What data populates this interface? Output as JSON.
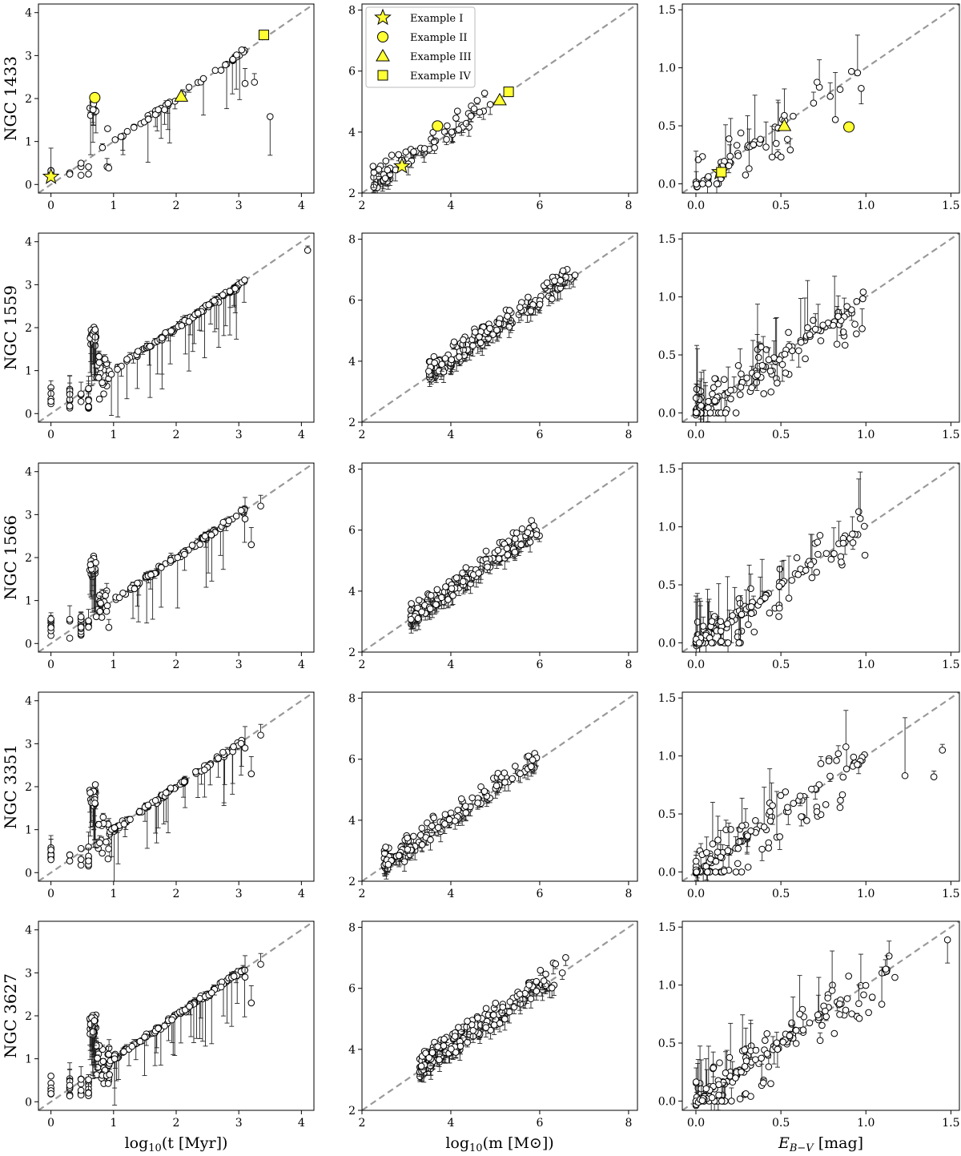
{
  "figure": {
    "x_labels": [
      "log10(t [Myr])",
      "log10(m [M⊙])",
      "E B−V [mag]"
    ],
    "legend": [
      {
        "label": "Example I",
        "marker": "star"
      },
      {
        "label": "Example II",
        "marker": "circle"
      },
      {
        "label": "Example III",
        "marker": "triangle"
      },
      {
        "label": "Example IV",
        "marker": "square"
      }
    ],
    "colors": {
      "highlight": "#ffff33",
      "point_face": "#ffffff",
      "point_edge": "#000000",
      "diagonal": "#999999"
    }
  },
  "chart_data": [
    {
      "type": "scatter",
      "galaxy": "NGC 1433",
      "columns": [
        {
          "quantity": "age",
          "lim": [
            -0.2,
            4.2
          ],
          "ticks": [
            0,
            1,
            2,
            3,
            4
          ],
          "tick_labels": [
            "0",
            "1",
            "2",
            "3",
            "4"
          ]
        },
        {
          "quantity": "mass",
          "lim": [
            2,
            8.2
          ],
          "ticks": [
            2,
            4,
            6,
            8
          ],
          "tick_labels": [
            "2",
            "4",
            "6",
            "8"
          ]
        },
        {
          "quantity": "ebv",
          "lim": [
            -0.08,
            1.55
          ],
          "ticks": [
            0.0,
            0.5,
            1.0,
            1.5
          ],
          "tick_labels": [
            "0.0",
            "0.5",
            "1.0",
            "1.5"
          ]
        }
      ],
      "examples": {
        "age": [
          {
            "label": "Example I",
            "x": 0.0,
            "y": 0.18
          },
          {
            "label": "Example II",
            "x": 0.7,
            "y": 2.02
          },
          {
            "label": "Example III",
            "x": 2.08,
            "y": 2.05
          },
          {
            "label": "Example IV",
            "x": 3.4,
            "y": 3.48
          }
        ],
        "mass": [
          {
            "label": "Example I",
            "x": 2.9,
            "y": 2.88
          },
          {
            "label": "Example II",
            "x": 3.7,
            "y": 4.2
          },
          {
            "label": "Example III",
            "x": 5.1,
            "y": 5.05
          },
          {
            "label": "Example IV",
            "x": 5.3,
            "y": 5.32
          }
        ],
        "ebv": [
          {
            "label": "Example I",
            "x": 0.14,
            "y": 0.1
          },
          {
            "label": "Example II",
            "x": 0.9,
            "y": 0.49
          },
          {
            "label": "Example III",
            "x": 0.52,
            "y": 0.5
          },
          {
            "label": "Example IV",
            "x": 0.15,
            "y": 0.1
          }
        ]
      }
    },
    {
      "type": "scatter",
      "galaxy": "NGC 1559"
    },
    {
      "type": "scatter",
      "galaxy": "NGC 1566"
    },
    {
      "type": "scatter",
      "galaxy": "NGC 3351"
    },
    {
      "type": "scatter",
      "galaxy": "NGC 3627"
    }
  ]
}
